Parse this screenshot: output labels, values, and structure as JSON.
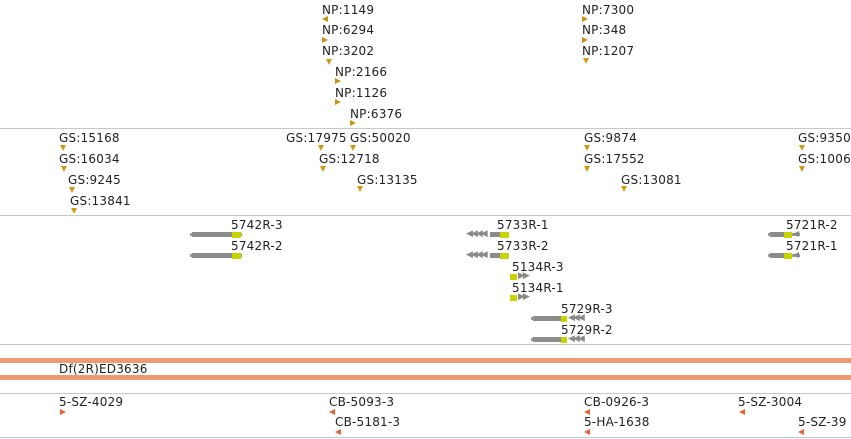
{
  "tracks": {
    "np": [
      "NP:1149",
      "NP:6294",
      "NP:3202",
      "NP:2166",
      "NP:1126",
      "NP:6376",
      "NP:7300",
      "NP:348",
      "NP:1207"
    ],
    "gs": [
      "GS:15168",
      "GS:16034",
      "GS:9245",
      "GS:13841",
      "GS:17975",
      "GS:50020",
      "GS:12718",
      "GS:13135",
      "GS:9874",
      "GS:17552",
      "GS:13081",
      "GS:9350",
      "GS:1006"
    ],
    "genes": [
      "5742R-3",
      "5742R-2",
      "5733R-1",
      "5733R-2",
      "5134R-3",
      "5134R-1",
      "5729R-3",
      "5729R-2",
      "5721R-2",
      "5721R-1"
    ],
    "deficiency": "Df(2R)ED3636",
    "strains": [
      "5-SZ-4029",
      "CB-5093-3",
      "CB-5181-3",
      "CB-0926-3",
      "5-HA-1638",
      "5-SZ-3004",
      "5-SZ-39"
    ]
  },
  "colors": {
    "insertion_marker": "#d09a10",
    "utr": "#c8d400",
    "exon": "#8c8c8c",
    "deficiency_bar": "#ef9a70",
    "strain_marker": "#e8623a",
    "separator": "#c8c8c8"
  }
}
